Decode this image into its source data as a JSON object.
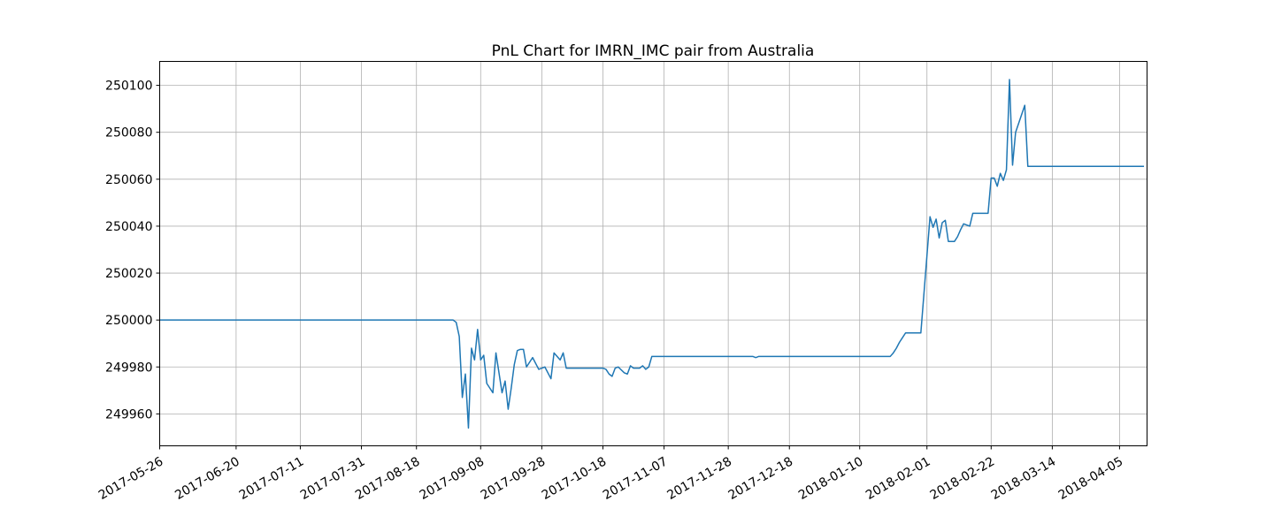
{
  "chart_data": {
    "type": "line",
    "title": "PnL Chart for IMRN_IMC pair from Australia",
    "xlabel": "",
    "ylabel": "",
    "x_tick_labels": [
      "2017-05-26",
      "2017-06-20",
      "2017-07-11",
      "2017-07-31",
      "2017-08-18",
      "2017-09-08",
      "2017-09-28",
      "2017-10-18",
      "2017-11-07",
      "2017-11-28",
      "2017-12-18",
      "2018-01-10",
      "2018-02-01",
      "2018-02-22",
      "2018-03-14",
      "2018-04-05"
    ],
    "y_ticks": [
      249960,
      249980,
      250000,
      250020,
      250040,
      250060,
      250080,
      250100
    ],
    "ylim": [
      249946.4,
      250110.2
    ],
    "xlim": [
      "2017-05-26",
      "2018-04-14"
    ],
    "grid": true,
    "line_color": "#1f77b4",
    "series": [
      {
        "x": [
          "2017-05-26",
          "2017-08-30",
          "2017-08-31",
          "2017-09-01",
          "2017-09-02",
          "2017-09-03",
          "2017-09-04",
          "2017-09-05",
          "2017-09-06",
          "2017-09-07",
          "2017-09-08",
          "2017-09-09",
          "2017-09-10",
          "2017-09-12",
          "2017-09-13",
          "2017-09-15",
          "2017-09-16",
          "2017-09-17",
          "2017-09-18",
          "2017-09-19",
          "2017-09-20",
          "2017-09-21",
          "2017-09-22",
          "2017-09-23",
          "2017-09-25",
          "2017-09-27",
          "2017-09-29",
          "2017-10-01",
          "2017-10-02",
          "2017-10-04",
          "2017-10-05",
          "2017-10-06",
          "2017-10-07",
          "2017-10-08",
          "2017-10-09",
          "2017-10-10",
          "2017-10-18",
          "2017-10-19",
          "2017-10-20",
          "2017-10-21",
          "2017-10-22",
          "2017-10-23",
          "2017-10-25",
          "2017-10-26",
          "2017-10-27",
          "2017-10-28",
          "2017-10-30",
          "2017-10-31",
          "2017-11-01",
          "2017-11-02",
          "2017-11-03",
          "2017-11-04",
          "2017-11-05",
          "2017-12-06",
          "2017-12-07",
          "2017-12-08",
          "2018-01-20",
          "2018-01-21",
          "2018-01-22",
          "2018-01-23",
          "2018-01-25",
          "2018-01-30",
          "2018-02-02",
          "2018-02-03",
          "2018-02-04",
          "2018-02-05",
          "2018-02-06",
          "2018-02-07",
          "2018-02-08",
          "2018-02-09",
          "2018-02-10",
          "2018-02-11",
          "2018-02-12",
          "2018-02-13",
          "2018-02-15",
          "2018-02-16",
          "2018-02-21",
          "2018-02-22",
          "2018-02-23",
          "2018-02-24",
          "2018-02-25",
          "2018-02-26",
          "2018-02-27",
          "2018-02-28",
          "2018-03-01",
          "2018-03-02",
          "2018-03-05",
          "2018-03-06",
          "2018-03-07",
          "2018-03-08",
          "2018-03-09",
          "2018-03-10",
          "2018-03-11",
          "2018-03-12",
          "2018-04-13"
        ],
        "values": [
          250000,
          250000,
          249999,
          249993,
          249967,
          249977,
          249954,
          249988,
          249983,
          249996,
          249983,
          249985,
          249973,
          249969,
          249986,
          249969,
          249974,
          249962,
          249971,
          249981,
          249987,
          249987.5,
          249987.5,
          249980,
          249984,
          249979,
          249980,
          249975,
          249986,
          249983,
          249986,
          249979.5,
          249979.5,
          249979.5,
          249979.5,
          249979.5,
          249979.5,
          249979,
          249977,
          249976,
          249979.5,
          249980,
          249977.5,
          249977,
          249980.5,
          249979.5,
          249979.5,
          249980.5,
          249979,
          249980,
          249984.5,
          249984.5,
          249984.5,
          249984.5,
          249984,
          249984.5,
          249984.5,
          249986,
          249988,
          249990.5,
          249994.5,
          249994.5,
          250044,
          250039.5,
          250043,
          250035,
          250041.5,
          250042.5,
          250033.5,
          250033.5,
          250033.5,
          250035.5,
          250038.5,
          250041,
          250040,
          250045.5,
          250045.5,
          250060.5,
          250060.5,
          250057,
          250062.5,
          250059.5,
          250064,
          250102.5,
          250066,
          250080,
          250091.5,
          250065.5,
          250065.5,
          250065.5,
          250065.5,
          250065.5,
          250065.5,
          250065.5,
          250065.5
        ]
      }
    ]
  }
}
